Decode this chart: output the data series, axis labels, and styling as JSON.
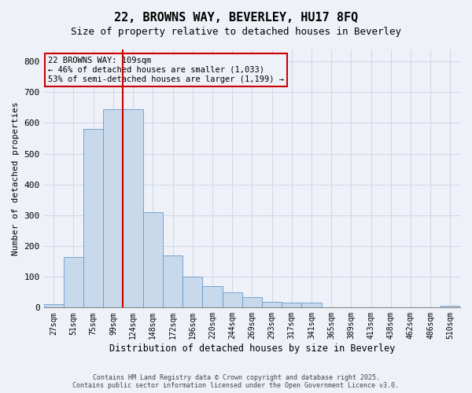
{
  "title_line1": "22, BROWNS WAY, BEVERLEY, HU17 8FQ",
  "title_line2": "Size of property relative to detached houses in Beverley",
  "xlabel": "Distribution of detached houses by size in Beverley",
  "ylabel": "Number of detached properties",
  "bar_labels": [
    "27sqm",
    "51sqm",
    "75sqm",
    "99sqm",
    "124sqm",
    "148sqm",
    "172sqm",
    "196sqm",
    "220sqm",
    "244sqm",
    "269sqm",
    "293sqm",
    "317sqm",
    "341sqm",
    "365sqm",
    "389sqm",
    "413sqm",
    "438sqm",
    "462sqm",
    "486sqm",
    "510sqm"
  ],
  "bar_values": [
    10,
    165,
    580,
    645,
    645,
    310,
    170,
    100,
    70,
    50,
    35,
    20,
    15,
    15,
    0,
    0,
    0,
    0,
    0,
    0,
    5
  ],
  "bar_color": "#c9d9ec",
  "bar_edgecolor": "#6699cc",
  "vline_x": 3.5,
  "vline_color": "#cc0000",
  "annotation_text": "22 BROWNS WAY: 109sqm\n← 46% of detached houses are smaller (1,033)\n53% of semi-detached houses are larger (1,199) →",
  "annotation_fontsize": 7.5,
  "box_edgecolor": "#cc0000",
  "ylim": [
    0,
    840
  ],
  "yticks": [
    0,
    100,
    200,
    300,
    400,
    500,
    600,
    700,
    800
  ],
  "background_color": "#eef2f8",
  "grid_color": "#d0d8e8",
  "footer_line1": "Contains HM Land Registry data © Crown copyright and database right 2025.",
  "footer_line2": "Contains public sector information licensed under the Open Government Licence v3.0."
}
